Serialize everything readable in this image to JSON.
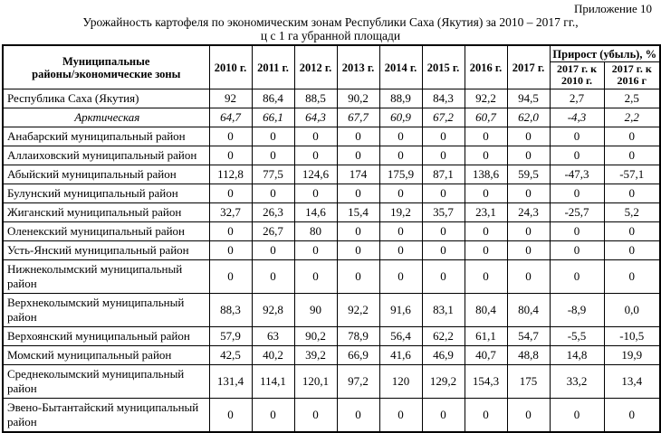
{
  "page": {
    "annex": "Приложение 10",
    "title_line1": "Урожайность картофеля по экономическим зонам Республики Саха (Якутия) за 2010 – 2017 гг.,",
    "title_line2": "ц с 1 га убранной площади"
  },
  "table": {
    "header": {
      "name_line1": "Муниципальные",
      "name_line2": "районы/экономические зоны",
      "years": [
        "2010 г.",
        "2011 г.",
        "2012 г.",
        "2013 г.",
        "2014 г.",
        "2015 г.",
        "2016 г.",
        "2017 г."
      ],
      "growth_group": "Прирост (убыль), %",
      "growth_col1": "2017 г. к 2010 г.",
      "growth_col2": "2017 г. к 2016 г"
    },
    "rows": [
      {
        "name": "Республика Саха (Якутия)",
        "style": "normal",
        "values": [
          "92",
          "86,4",
          "88,5",
          "90,2",
          "88,9",
          "84,3",
          "92,2",
          "94,5",
          "2,7",
          "2,5"
        ]
      },
      {
        "name": "Арктическая",
        "style": "zone",
        "values": [
          "64,7",
          "66,1",
          "64,3",
          "67,7",
          "60,9",
          "67,2",
          "60,7",
          "62,0",
          "-4,3",
          "2,2"
        ]
      },
      {
        "name": "Анабарский муниципальный район",
        "style": "normal",
        "values": [
          "0",
          "0",
          "0",
          "0",
          "0",
          "0",
          "0",
          "0",
          "0",
          "0"
        ]
      },
      {
        "name": "Аллаиховский муниципальный район",
        "style": "normal",
        "values": [
          "0",
          "0",
          "0",
          "0",
          "0",
          "0",
          "0",
          "0",
          "0",
          "0"
        ]
      },
      {
        "name": "Абыйский муниципальный район",
        "style": "normal",
        "values": [
          "112,8",
          "77,5",
          "124,6",
          "174",
          "175,9",
          "87,1",
          "138,6",
          "59,5",
          "-47,3",
          "-57,1"
        ]
      },
      {
        "name": "Булунский муниципальный район",
        "style": "normal",
        "values": [
          "0",
          "0",
          "0",
          "0",
          "0",
          "0",
          "0",
          "0",
          "0",
          "0"
        ]
      },
      {
        "name": "Жиганский муниципальный район",
        "style": "normal",
        "values": [
          "32,7",
          "26,3",
          "14,6",
          "15,4",
          "19,2",
          "35,7",
          "23,1",
          "24,3",
          "-25,7",
          "5,2"
        ]
      },
      {
        "name": "Оленекский муниципальный район",
        "style": "normal",
        "values": [
          "0",
          "26,7",
          "80",
          "0",
          "0",
          "0",
          "0",
          "0",
          "0",
          "0"
        ]
      },
      {
        "name": "Усть-Янский муниципальный район",
        "style": "normal",
        "values": [
          "0",
          "0",
          "0",
          "0",
          "0",
          "0",
          "0",
          "0",
          "0",
          "0"
        ]
      },
      {
        "name": "Нижнеколымский муниципальный район",
        "style": "normal",
        "values": [
          "0",
          "0",
          "0",
          "0",
          "0",
          "0",
          "0",
          "0",
          "0",
          "0"
        ]
      },
      {
        "name": "Верхнеколымский муниципальный район",
        "style": "normal",
        "values": [
          "88,3",
          "92,8",
          "90",
          "92,2",
          "91,6",
          "83,1",
          "80,4",
          "80,4",
          "-8,9",
          "0,0"
        ]
      },
      {
        "name": "Верхоянский муниципальный район",
        "style": "normal",
        "values": [
          "57,9",
          "63",
          "90,2",
          "78,9",
          "56,4",
          "62,2",
          "61,1",
          "54,7",
          "-5,5",
          "-10,5"
        ]
      },
      {
        "name": "Момский муниципальный район",
        "style": "normal",
        "values": [
          "42,5",
          "40,2",
          "39,2",
          "66,9",
          "41,6",
          "46,9",
          "40,7",
          "48,8",
          "14,8",
          "19,9"
        ]
      },
      {
        "name": "Среднеколымский муниципальный район",
        "style": "normal",
        "values": [
          "131,4",
          "114,1",
          "120,1",
          "97,2",
          "120",
          "129,2",
          "154,3",
          "175",
          "33,2",
          "13,4"
        ]
      },
      {
        "name": "Эвено-Бытантайский муниципальный район",
        "style": "normal",
        "values": [
          "0",
          "0",
          "0",
          "0",
          "0",
          "0",
          "0",
          "0",
          "0",
          "0"
        ]
      }
    ]
  }
}
